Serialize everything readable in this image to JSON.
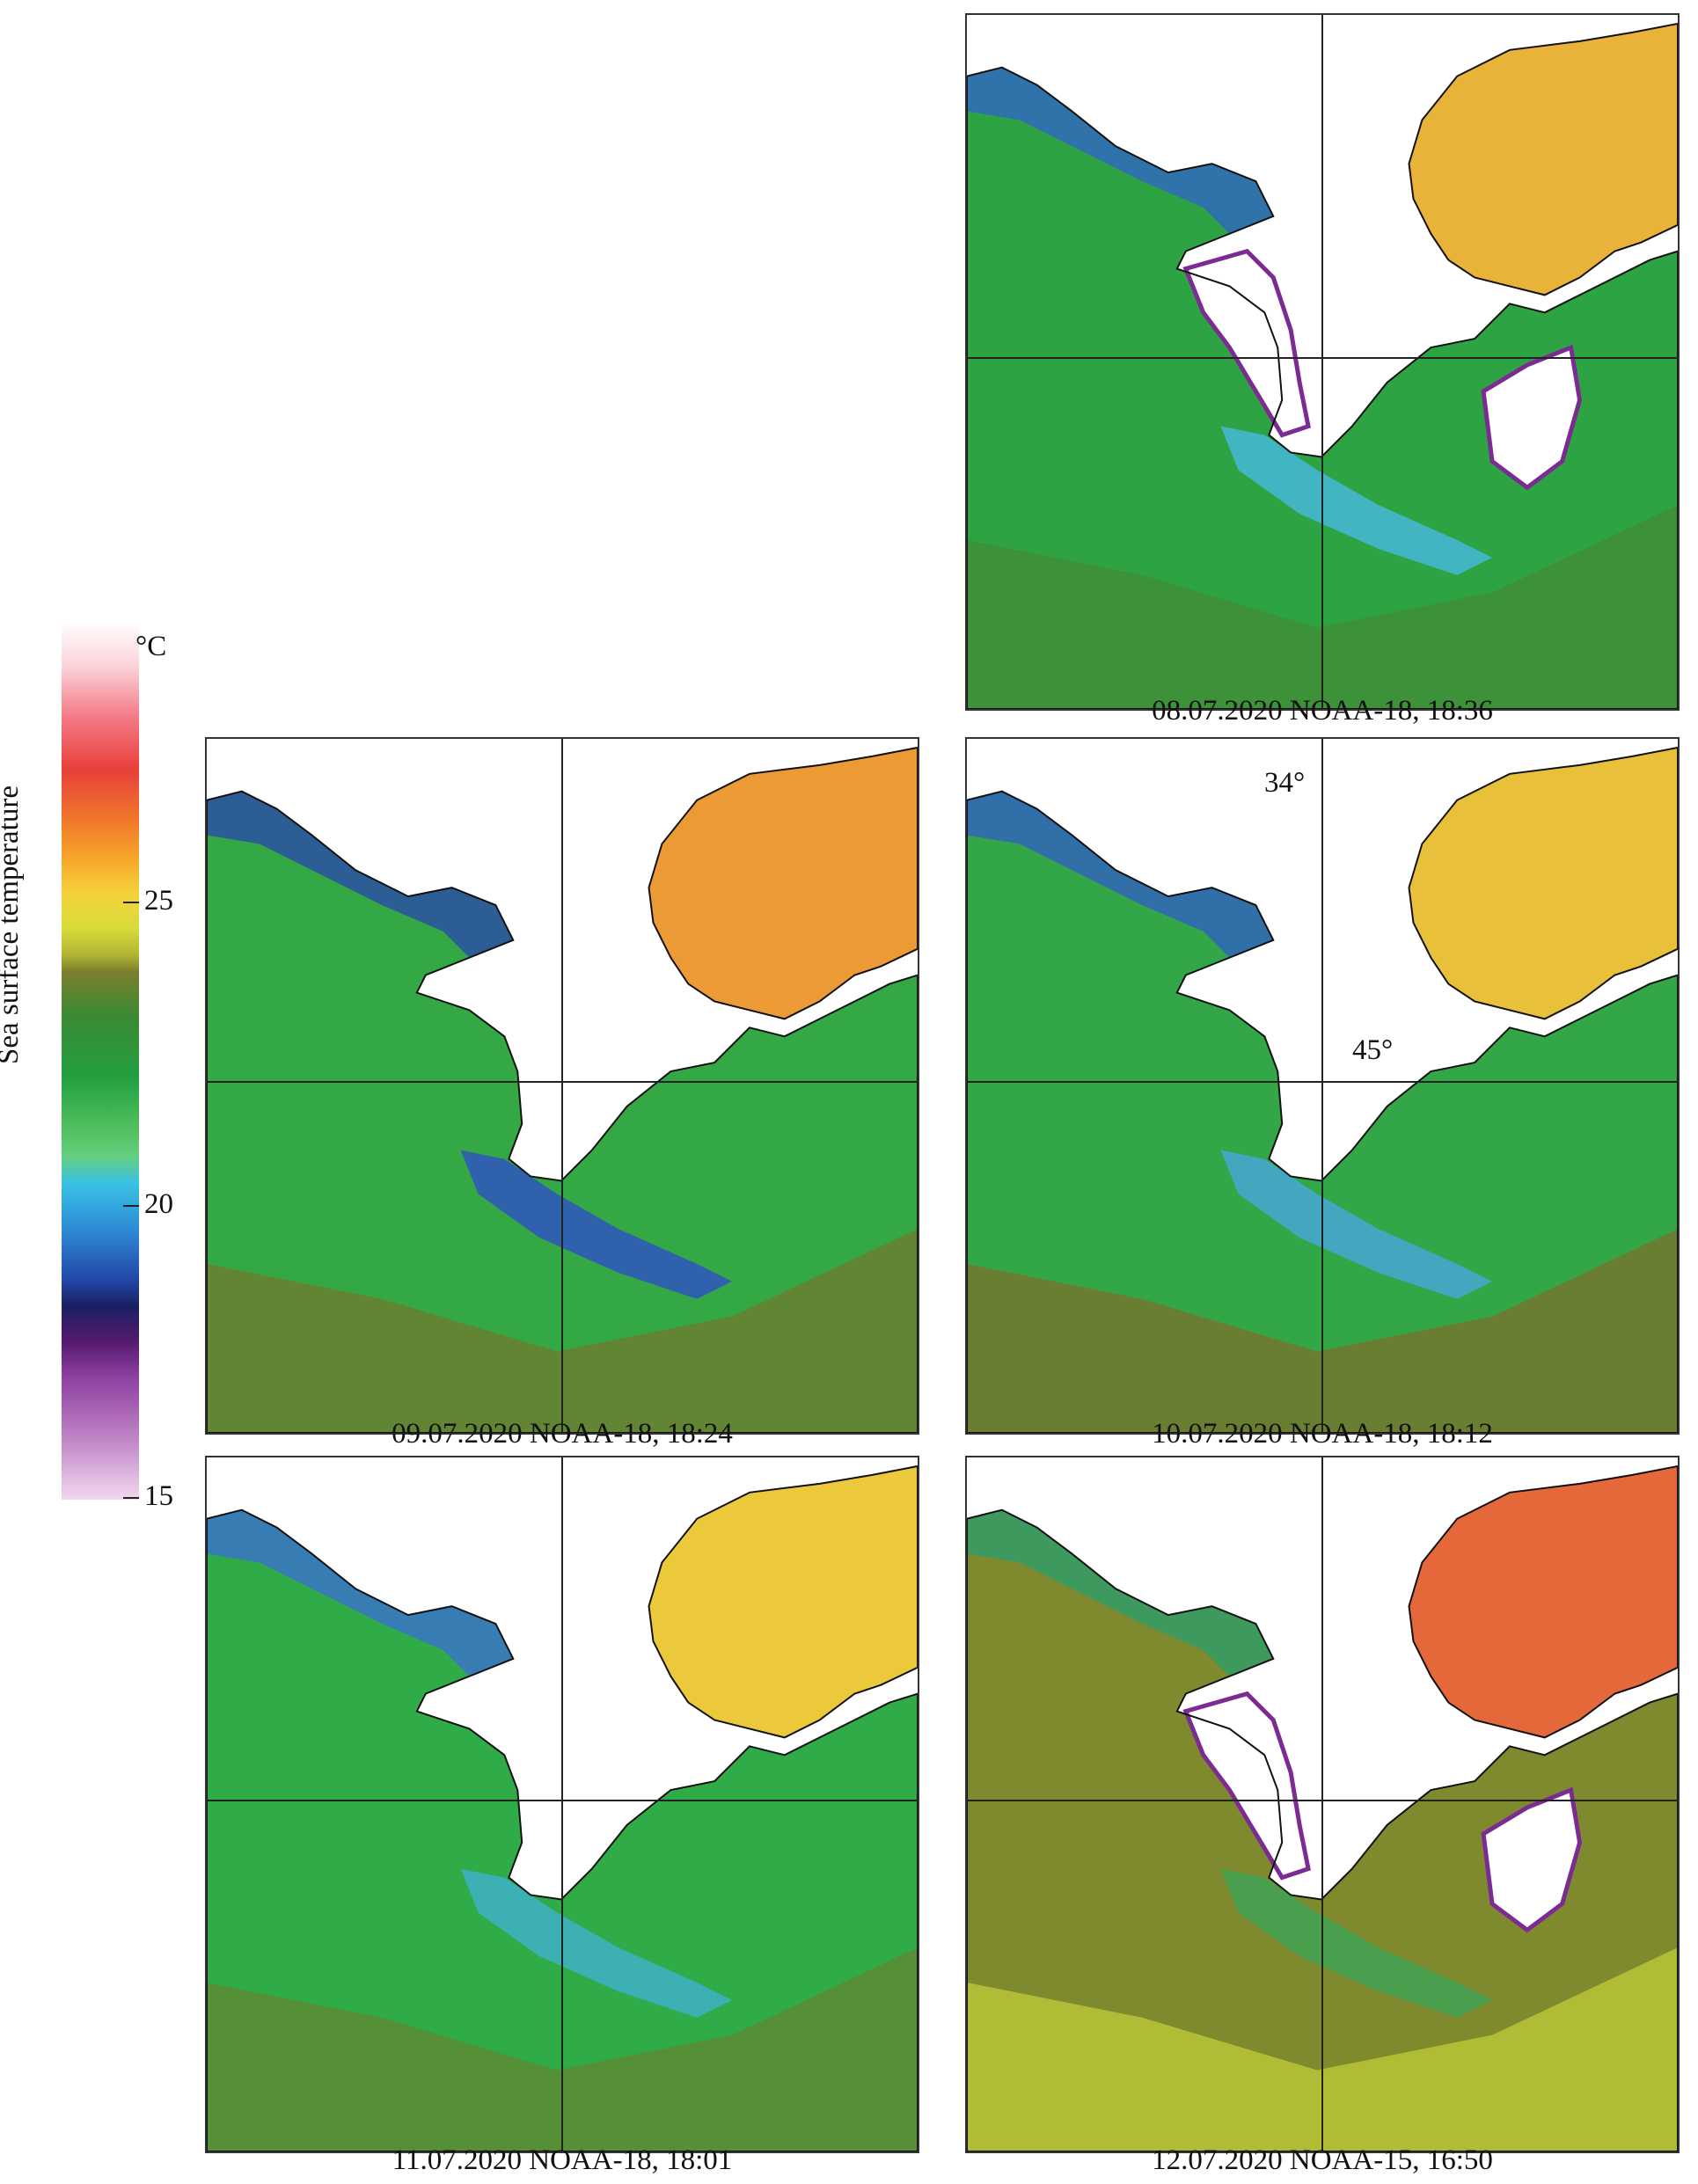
{
  "colorbar": {
    "title": "Sea surface temperature",
    "unit": "°C",
    "ticks": [
      "25",
      "20",
      "15"
    ],
    "range": [
      15,
      30
    ]
  },
  "coordinates": {
    "lon": "34°",
    "lat": "45°"
  },
  "panels": [
    {
      "caption": "08.07.2020 NOAA-18, 18:36",
      "style": "clouds-cool"
    },
    {
      "caption": "09.07.2020 NOAA-18, 18:24",
      "style": "cool-plume"
    },
    {
      "caption": "10.07.2020 NOAA-18, 18:12",
      "style": "mild-plume"
    },
    {
      "caption": "11.07.2020 NOAA-18, 18:01",
      "style": "uniform"
    },
    {
      "caption": "12.07.2020 NOAA-15, 16:50",
      "style": "warm"
    }
  ],
  "colors": {
    "land": "#ffffff",
    "coast": "#111111",
    "grid": "#222222"
  }
}
